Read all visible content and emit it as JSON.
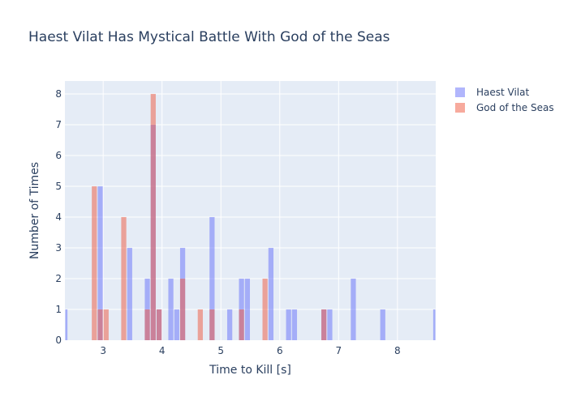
{
  "chart_data": {
    "type": "bar",
    "title": "Haest Vilat Has Mystical Battle With God of the Seas",
    "xlabel": "Time to Kill [s]",
    "ylabel": "Number of Times",
    "xlim": [
      2.35,
      8.65
    ],
    "ylim": [
      0,
      8.42
    ],
    "xticks": [
      3,
      4,
      5,
      6,
      7,
      8
    ],
    "yticks": [
      0,
      1,
      2,
      3,
      4,
      5,
      6,
      7,
      8
    ],
    "bin_width": 0.1,
    "grid": true,
    "legend_position": "top-right",
    "series": [
      {
        "name": "Haest Vilat",
        "color": "#636efa",
        "opacity": 0.5,
        "bins": [
          [
            2.3,
            1
          ],
          [
            2.9,
            5
          ],
          [
            3.4,
            3
          ],
          [
            3.7,
            2
          ],
          [
            3.8,
            7
          ],
          [
            3.9,
            1
          ],
          [
            4.1,
            2
          ],
          [
            4.2,
            1
          ],
          [
            4.3,
            3
          ],
          [
            4.8,
            4
          ],
          [
            5.1,
            1
          ],
          [
            5.3,
            2
          ],
          [
            5.4,
            2
          ],
          [
            5.8,
            3
          ],
          [
            6.1,
            1
          ],
          [
            6.2,
            1
          ],
          [
            6.7,
            1
          ],
          [
            6.8,
            1
          ],
          [
            7.2,
            2
          ],
          [
            7.7,
            1
          ],
          [
            8.6,
            1
          ]
        ]
      },
      {
        "name": "God of the Seas",
        "color": "#ef553b",
        "opacity": 0.5,
        "bins": [
          [
            2.8,
            5
          ],
          [
            2.9,
            1
          ],
          [
            3.0,
            1
          ],
          [
            3.3,
            4
          ],
          [
            3.7,
            1
          ],
          [
            3.8,
            8
          ],
          [
            3.9,
            1
          ],
          [
            4.3,
            2
          ],
          [
            4.6,
            1
          ],
          [
            4.8,
            1
          ],
          [
            5.3,
            1
          ],
          [
            5.7,
            2
          ],
          [
            6.7,
            1
          ]
        ]
      }
    ]
  }
}
